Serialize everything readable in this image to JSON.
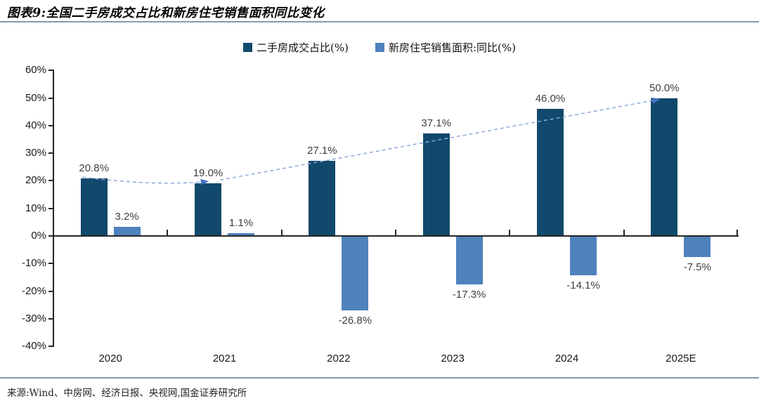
{
  "header": {
    "title": "图表9:全国二手房成交占比和新房住宅销售面积同比变化"
  },
  "source": {
    "text": "来源:Wind、中房网、经济日报、央视网,国金证券研究所"
  },
  "chart_data": {
    "type": "bar",
    "title": "全国二手房成交占比和新房住宅销售面积同比变化",
    "categories": [
      "2020",
      "2021",
      "2022",
      "2023",
      "2024",
      "2025E"
    ],
    "series": [
      {
        "name": "二手房成交占比(%)",
        "color": "#10496b",
        "values": [
          20.8,
          19.0,
          27.1,
          37.1,
          46.0,
          50.0
        ],
        "labels": [
          "20.8%",
          "19.0%",
          "27.1%",
          "37.1%",
          "46.0%",
          "50.0%"
        ]
      },
      {
        "name": "新房住宅销售面积:同比(%)",
        "color": "#4f81bd",
        "values": [
          3.2,
          1.1,
          -26.8,
          -17.3,
          -14.1,
          -7.5
        ],
        "labels": [
          "3.2%",
          "1.1%",
          "-26.8%",
          "-17.3%",
          "-14.1%",
          "-7.5%"
        ]
      }
    ],
    "yticks": [
      60,
      50,
      40,
      30,
      20,
      10,
      0,
      -10,
      -20,
      -30,
      -40
    ],
    "ytick_labels": [
      "60%",
      "50%",
      "40%",
      "30%",
      "20%",
      "10%",
      "0%",
      "-10%",
      "-20%",
      "-30%",
      "-40%"
    ],
    "ylim": [
      -40,
      60
    ],
    "xlabel": "",
    "ylabel": "",
    "grid": false,
    "legend_position": "top",
    "trend": {
      "description": "dashed arrow line tracing the tops of the 二手房成交占比 bars from 2020 to 2025E",
      "style": "dashed",
      "line_color": "#8ea9db",
      "arrow_color": "#4472c4",
      "arrows_at": [
        "2021",
        "2025E"
      ]
    }
  }
}
